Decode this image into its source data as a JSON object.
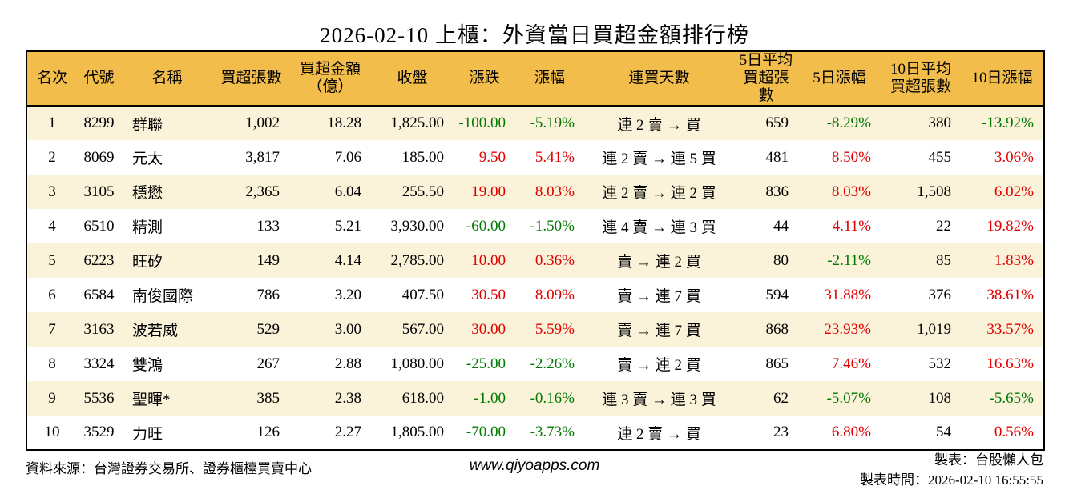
{
  "title": "2026-02-10 上櫃：外資當日買超金額排行榜",
  "colors": {
    "header_bg": "#f3bd4b",
    "row_alt_bg": "#fbf2da",
    "up_red": "#e10000",
    "down_green": "#007a00"
  },
  "chart_data": {
    "type": "table",
    "title": "2026-02-10 上櫃：外資當日買超金額排行榜",
    "columns": [
      "名次",
      "代號",
      "名稱",
      "買超張數",
      "買超金額\n（億）",
      "收盤",
      "漲跌",
      "漲幅",
      "連買天數",
      "5日平均\n買超張數",
      "5日漲幅",
      "10日平均\n買超張數",
      "10日漲幅"
    ],
    "column_align": [
      "center",
      "center",
      "left",
      "right",
      "right",
      "right",
      "right",
      "right",
      "center",
      "right",
      "right",
      "right",
      "right"
    ],
    "signed_color_columns": [
      6,
      7,
      10,
      12
    ],
    "rows": [
      [
        "1",
        "8299",
        "群聯",
        "1,002",
        "18.28",
        "1,825.00",
        "-100.00",
        "-5.19%",
        "連 2 賣 → 買",
        "659",
        "-8.29%",
        "380",
        "-13.92%"
      ],
      [
        "2",
        "8069",
        "元太",
        "3,817",
        "7.06",
        "185.00",
        "9.50",
        "5.41%",
        "連 2 賣 → 連 5 買",
        "481",
        "8.50%",
        "455",
        "3.06%"
      ],
      [
        "3",
        "3105",
        "穩懋",
        "2,365",
        "6.04",
        "255.50",
        "19.00",
        "8.03%",
        "連 2 賣 → 連 2 買",
        "836",
        "8.03%",
        "1,508",
        "6.02%"
      ],
      [
        "4",
        "6510",
        "精測",
        "133",
        "5.21",
        "3,930.00",
        "-60.00",
        "-1.50%",
        "連 4 賣 → 連 3 買",
        "44",
        "4.11%",
        "22",
        "19.82%"
      ],
      [
        "5",
        "6223",
        "旺矽",
        "149",
        "4.14",
        "2,785.00",
        "10.00",
        "0.36%",
        "賣 → 連 2 買",
        "80",
        "-2.11%",
        "85",
        "1.83%"
      ],
      [
        "6",
        "6584",
        "南俊國際",
        "786",
        "3.20",
        "407.50",
        "30.50",
        "8.09%",
        "賣 → 連 7 買",
        "594",
        "31.88%",
        "376",
        "38.61%"
      ],
      [
        "7",
        "3163",
        "波若威",
        "529",
        "3.00",
        "567.00",
        "30.00",
        "5.59%",
        "賣 → 連 7 買",
        "868",
        "23.93%",
        "1,019",
        "33.57%"
      ],
      [
        "8",
        "3324",
        "雙鴻",
        "267",
        "2.88",
        "1,080.00",
        "-25.00",
        "-2.26%",
        "賣 → 連 2 買",
        "865",
        "7.46%",
        "532",
        "16.63%"
      ],
      [
        "9",
        "5536",
        "聖暉*",
        "385",
        "2.38",
        "618.00",
        "-1.00",
        "-0.16%",
        "連 3 賣 → 連 3 買",
        "62",
        "-5.07%",
        "108",
        "-5.65%"
      ],
      [
        "10",
        "3529",
        "力旺",
        "126",
        "2.27",
        "1,805.00",
        "-70.00",
        "-3.73%",
        "連 2 賣 → 買",
        "23",
        "6.80%",
        "54",
        "0.56%"
      ]
    ],
    "column_names": [
      "rank",
      "code",
      "name",
      "net_buy_volume",
      "net_buy_amount_100m",
      "close",
      "change",
      "change_pct",
      "consecutive_buy_days",
      "avg5_net_buy_volume",
      "change_pct_5d",
      "avg10_net_buy_volume",
      "change_pct_10d"
    ]
  },
  "footer": {
    "source": "資料來源：台灣證券交易所、證券櫃檯買賣中心",
    "website": "www.qiyoapps.com",
    "maker": "製表：台股懶人包",
    "made_time": "製表時間：2026-02-10 16:55:55"
  }
}
